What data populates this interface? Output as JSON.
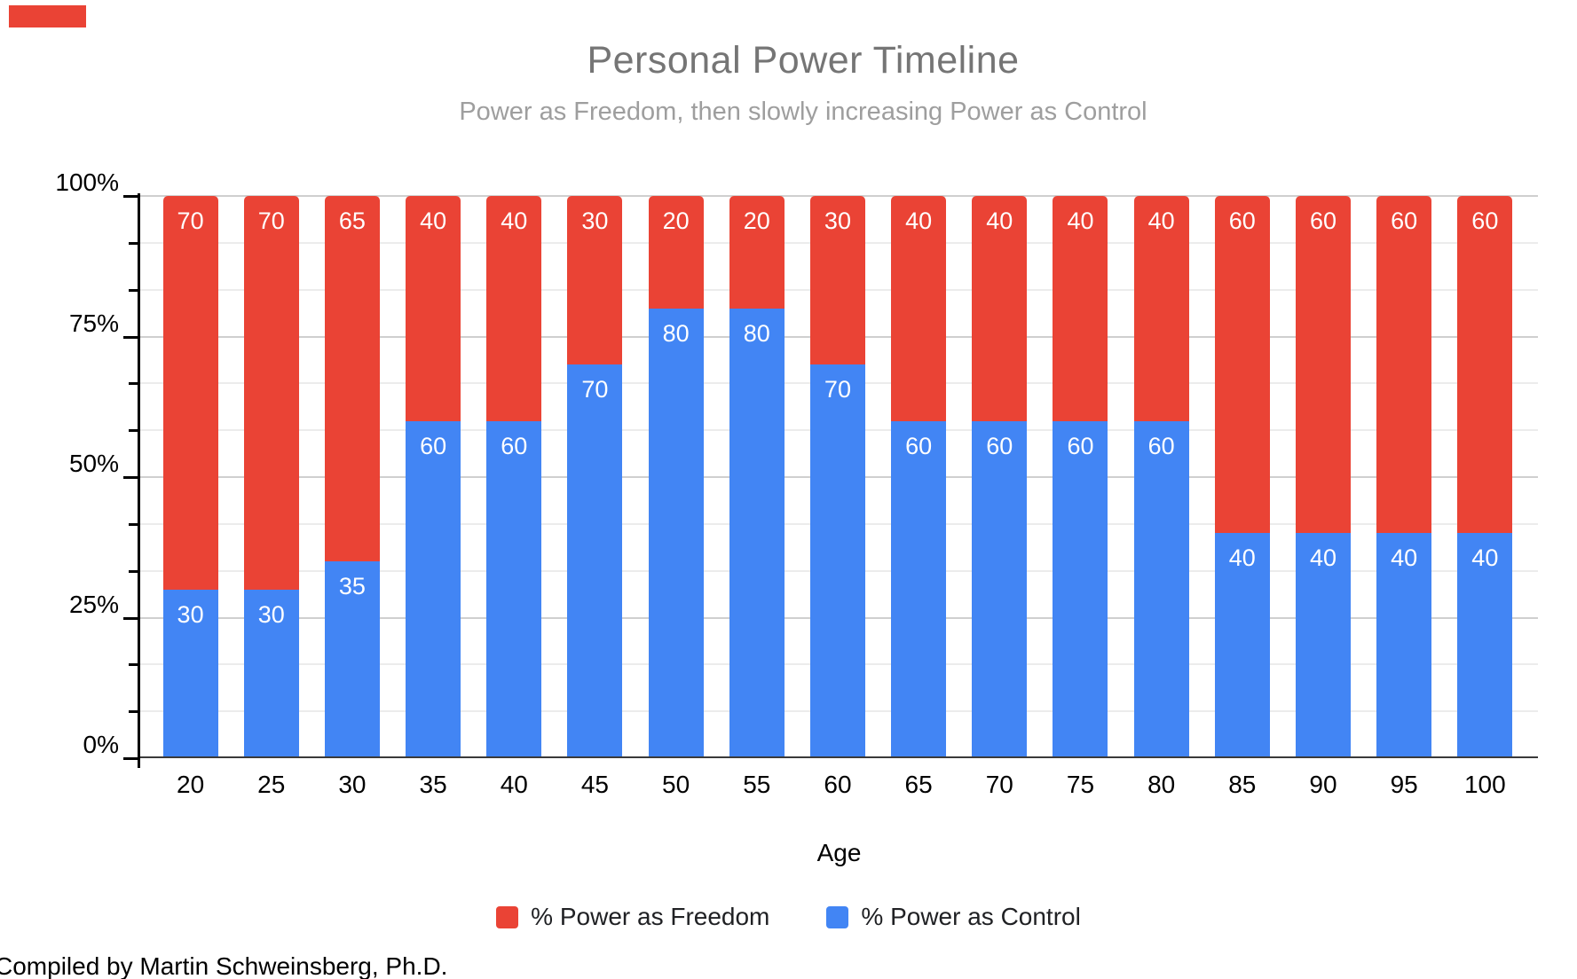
{
  "annotation": {
    "color": "#ea4335"
  },
  "chart_data": {
    "type": "bar",
    "stacked": true,
    "stacked_total": 100,
    "title": "Personal Power Timeline",
    "subtitle": "Power as Freedom, then slowly increasing Power as Control",
    "xlabel": "Age",
    "ylabel": "",
    "categories": [
      "20",
      "25",
      "30",
      "35",
      "40",
      "45",
      "50",
      "55",
      "60",
      "65",
      "70",
      "75",
      "80",
      "85",
      "90",
      "95",
      "100"
    ],
    "series": [
      {
        "name": "% Power as Control",
        "color": "#4285f4",
        "values": [
          30,
          30,
          35,
          60,
          60,
          70,
          80,
          80,
          70,
          60,
          60,
          60,
          60,
          40,
          40,
          40,
          40
        ]
      },
      {
        "name": "% Power as Freedom",
        "color": "#ea4335",
        "values": [
          70,
          70,
          65,
          40,
          40,
          30,
          20,
          20,
          30,
          40,
          40,
          40,
          40,
          60,
          60,
          60,
          60
        ]
      }
    ],
    "ylim": [
      0,
      100
    ],
    "yticks": [
      0,
      25,
      50,
      75,
      100
    ],
    "ytick_labels": [
      "0%",
      "25%",
      "50%",
      "75%",
      "100%"
    ],
    "minor_divisions": 12,
    "grid": "horizontal",
    "legend_position": "bottom",
    "bar_labels": true
  },
  "legend": {
    "items": [
      {
        "label": "% Power as Freedom",
        "color": "#ea4335"
      },
      {
        "label": "% Power as Control",
        "color": "#4285f4"
      }
    ]
  },
  "footer": {
    "credit": "Compiled by Martin Schweinsberg, Ph.D."
  }
}
